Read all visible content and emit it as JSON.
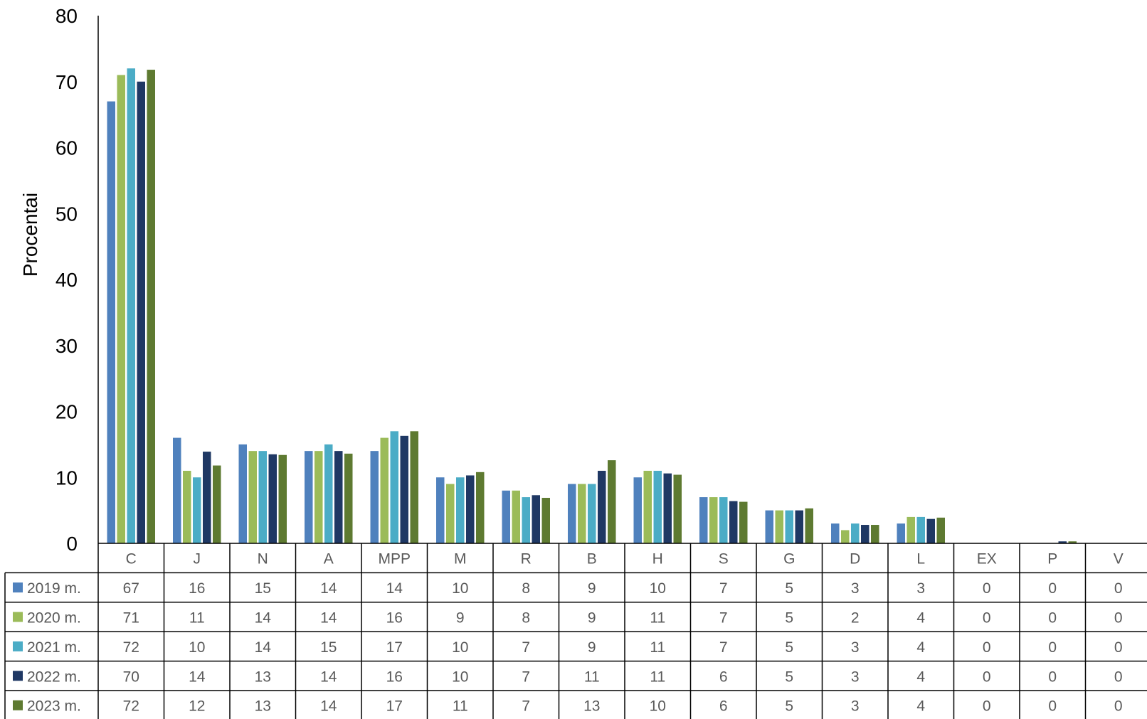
{
  "chart_data": {
    "type": "bar",
    "ylabel": "Procentai",
    "xlabel": "",
    "ylim": [
      0,
      80
    ],
    "yticks": [
      0,
      10,
      20,
      30,
      40,
      50,
      60,
      70,
      80
    ],
    "grid": false,
    "legend": "data-table-left",
    "categories": [
      "C",
      "J",
      "N",
      "A",
      "MPP",
      "M",
      "R",
      "B",
      "H",
      "S",
      "G",
      "D",
      "L",
      "EX",
      "P",
      "V"
    ],
    "series": [
      {
        "name": "2019 m.",
        "color": "#4F81BD",
        "values": [
          67,
          16,
          15,
          14,
          14,
          10,
          8,
          9,
          10,
          7,
          5,
          3,
          3,
          0,
          0,
          0
        ],
        "plotted": [
          67,
          16,
          15,
          14,
          14,
          10,
          8,
          9,
          10,
          7,
          5,
          3,
          3,
          0,
          0,
          0
        ]
      },
      {
        "name": "2020 m.",
        "color": "#9BBB59",
        "values": [
          71,
          11,
          14,
          14,
          16,
          9,
          8,
          9,
          11,
          7,
          5,
          2,
          4,
          0,
          0,
          0
        ],
        "plotted": [
          71,
          11,
          14,
          14,
          16,
          9,
          8,
          9,
          11,
          7,
          5,
          2,
          4,
          0,
          0,
          0
        ]
      },
      {
        "name": "2021 m.",
        "color": "#4BACC6",
        "values": [
          72,
          10,
          14,
          15,
          17,
          10,
          7,
          9,
          11,
          7,
          5,
          3,
          4,
          0,
          0,
          0
        ],
        "plotted": [
          72,
          10,
          14,
          15,
          17,
          10,
          7,
          9,
          11,
          7,
          5,
          3,
          4,
          0,
          0,
          0
        ]
      },
      {
        "name": "2022 m.",
        "color": "#1F3864",
        "values": [
          70,
          14,
          13,
          14,
          16,
          10,
          7,
          11,
          11,
          6,
          5,
          3,
          4,
          0,
          0,
          0
        ],
        "plotted": [
          70,
          13.9,
          13.5,
          14,
          16.3,
          10.3,
          7.3,
          11,
          10.6,
          6.4,
          5,
          2.8,
          3.7,
          0,
          0.3,
          0
        ]
      },
      {
        "name": "2023 m.",
        "color": "#5E7A31",
        "values": [
          72,
          12,
          13,
          14,
          17,
          11,
          7,
          13,
          10,
          6,
          5,
          3,
          4,
          0,
          0,
          0
        ],
        "plotted": [
          71.8,
          11.8,
          13.4,
          13.6,
          17,
          10.8,
          6.9,
          12.6,
          10.4,
          6.3,
          5.3,
          2.8,
          3.9,
          0,
          0.3,
          0
        ]
      }
    ]
  }
}
